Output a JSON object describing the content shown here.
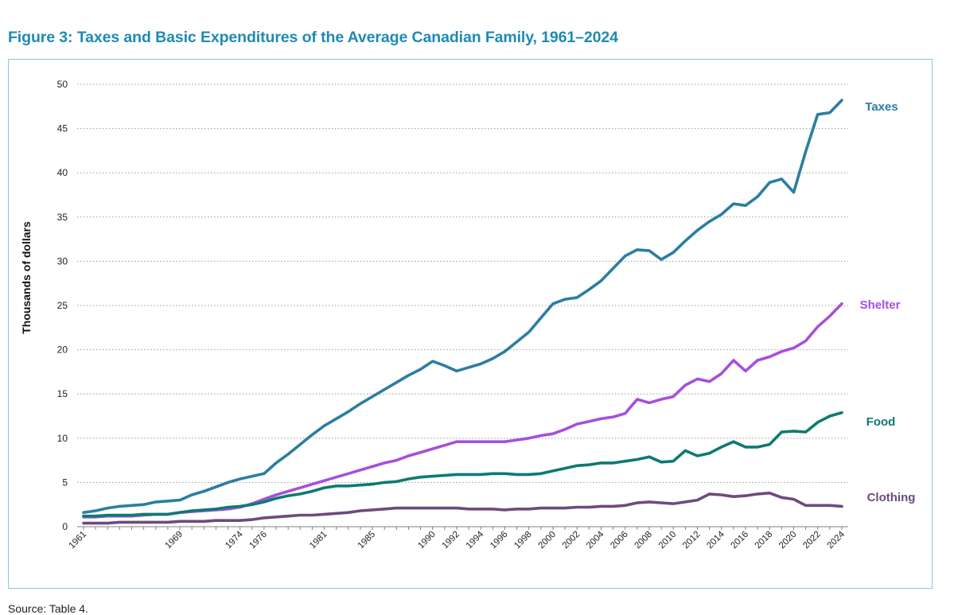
{
  "title": "Figure 3: Taxes and Basic Expenditures of the Average Canadian Family, 1961–2024",
  "source": "Source: Table 4.",
  "chart_data": {
    "type": "line",
    "title": "Figure 3: Taxes and Basic Expenditures of the Average Canadian Family, 1961–2024",
    "xlabel": "",
    "ylabel": "Thousands of dollars",
    "ylim": [
      0,
      50
    ],
    "yticks": [
      0,
      5,
      10,
      15,
      20,
      25,
      30,
      35,
      40,
      45,
      50
    ],
    "xlim": [
      1961,
      2024
    ],
    "xticks": [
      1961,
      1969,
      1974,
      1976,
      1981,
      1985,
      1990,
      1992,
      1994,
      1996,
      1998,
      2000,
      2002,
      2004,
      2006,
      2008,
      2010,
      2012,
      2014,
      2016,
      2018,
      2020,
      2022,
      2024
    ],
    "grid": "horizontal dotted",
    "x": [
      1961,
      1962,
      1963,
      1964,
      1965,
      1966,
      1967,
      1968,
      1969,
      1970,
      1971,
      1972,
      1973,
      1974,
      1975,
      1976,
      1977,
      1978,
      1979,
      1980,
      1981,
      1982,
      1983,
      1984,
      1985,
      1986,
      1987,
      1988,
      1989,
      1990,
      1991,
      1992,
      1993,
      1994,
      1995,
      1996,
      1997,
      1998,
      1999,
      2000,
      2001,
      2002,
      2003,
      2004,
      2005,
      2006,
      2007,
      2008,
      2009,
      2010,
      2011,
      2012,
      2013,
      2014,
      2015,
      2016,
      2017,
      2018,
      2019,
      2020,
      2021,
      2022,
      2023,
      2024
    ],
    "series": [
      {
        "name": "Taxes",
        "color": "#2b7ea1",
        "values": [
          1.6,
          1.8,
          2.1,
          2.3,
          2.4,
          2.5,
          2.8,
          2.9,
          3.0,
          3.6,
          4.0,
          4.5,
          5.0,
          5.4,
          5.7,
          6.0,
          7.2,
          8.2,
          9.3,
          10.4,
          11.4,
          12.2,
          13.0,
          13.9,
          14.7,
          15.5,
          16.3,
          17.1,
          17.8,
          18.7,
          18.2,
          17.6,
          18.0,
          18.4,
          19.0,
          19.8,
          20.9,
          22.0,
          23.6,
          25.2,
          25.7,
          25.9,
          26.8,
          27.8,
          29.2,
          30.6,
          31.3,
          31.2,
          30.2,
          31.0,
          32.3,
          33.5,
          34.5,
          35.3,
          36.5,
          36.3,
          37.3,
          38.9,
          39.3,
          37.8,
          42.4,
          46.6,
          46.8,
          48.2
        ]
      },
      {
        "name": "Shelter",
        "color": "#a64fdd",
        "values": [
          1.1,
          1.1,
          1.2,
          1.2,
          1.2,
          1.3,
          1.4,
          1.4,
          1.6,
          1.7,
          1.8,
          1.9,
          2.0,
          2.2,
          2.6,
          3.1,
          3.6,
          4.0,
          4.4,
          4.8,
          5.2,
          5.6,
          6.0,
          6.4,
          6.8,
          7.2,
          7.5,
          8.0,
          8.4,
          8.8,
          9.2,
          9.6,
          9.6,
          9.6,
          9.6,
          9.6,
          9.8,
          10.0,
          10.3,
          10.5,
          11.0,
          11.6,
          11.9,
          12.2,
          12.4,
          12.8,
          14.4,
          14.0,
          14.4,
          14.7,
          16.0,
          16.7,
          16.4,
          17.3,
          18.8,
          17.6,
          18.8,
          19.2,
          19.8,
          20.2,
          21.0,
          22.6,
          23.8,
          25.2
        ]
      },
      {
        "name": "Food",
        "color": "#0d7a72",
        "values": [
          1.2,
          1.2,
          1.3,
          1.3,
          1.3,
          1.4,
          1.4,
          1.4,
          1.6,
          1.8,
          1.9,
          2.0,
          2.2,
          2.3,
          2.5,
          2.8,
          3.2,
          3.5,
          3.7,
          4.0,
          4.4,
          4.6,
          4.6,
          4.7,
          4.8,
          5.0,
          5.1,
          5.4,
          5.6,
          5.7,
          5.8,
          5.9,
          5.9,
          5.9,
          6.0,
          6.0,
          5.9,
          5.9,
          6.0,
          6.3,
          6.6,
          6.9,
          7.0,
          7.2,
          7.2,
          7.4,
          7.6,
          7.9,
          7.3,
          7.4,
          8.6,
          8.0,
          8.3,
          9.0,
          9.6,
          9.0,
          9.0,
          9.3,
          10.7,
          10.8,
          10.7,
          11.8,
          12.5,
          12.9
        ]
      },
      {
        "name": "Clothing",
        "color": "#6e4a7e",
        "values": [
          0.4,
          0.4,
          0.4,
          0.5,
          0.5,
          0.5,
          0.5,
          0.5,
          0.6,
          0.6,
          0.6,
          0.7,
          0.7,
          0.7,
          0.8,
          1.0,
          1.1,
          1.2,
          1.3,
          1.3,
          1.4,
          1.5,
          1.6,
          1.8,
          1.9,
          2.0,
          2.1,
          2.1,
          2.1,
          2.1,
          2.1,
          2.1,
          2.0,
          2.0,
          2.0,
          1.9,
          2.0,
          2.0,
          2.1,
          2.1,
          2.1,
          2.2,
          2.2,
          2.3,
          2.3,
          2.4,
          2.7,
          2.8,
          2.7,
          2.6,
          2.8,
          3.0,
          3.7,
          3.6,
          3.4,
          3.5,
          3.7,
          3.8,
          3.3,
          3.1,
          2.4,
          2.4,
          2.4,
          2.3
        ]
      }
    ]
  }
}
